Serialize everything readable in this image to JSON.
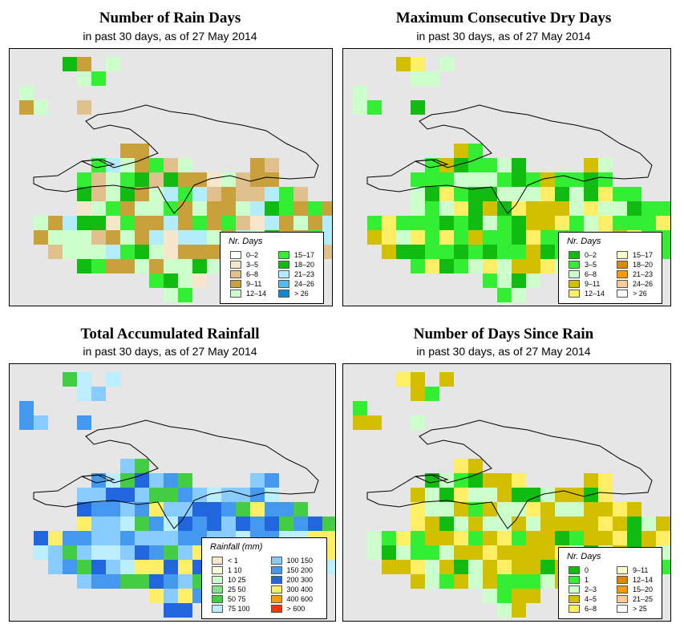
{
  "panels": [
    {
      "title": "Number of Rain Days",
      "subtitle": "in past 30 days, as of  27 May 2014",
      "legend_title": "Nr. Days",
      "legend": [
        {
          "label": "0–2",
          "color": "#ffffff"
        },
        {
          "label": "3–5",
          "color": "#f5e6cc"
        },
        {
          "label": "6–8",
          "color": "#e0c08c"
        },
        {
          "label": "9–11",
          "color": "#c8a03c"
        },
        {
          "label": "12–14",
          "color": "#ccffcc"
        },
        {
          "label": "15–17",
          "color": "#33ee33"
        },
        {
          "label": "18–20",
          "color": "#11bb11"
        },
        {
          "label": "21–23",
          "color": "#b3ecfa"
        },
        {
          "label": "24–26",
          "color": "#55bbee"
        },
        {
          "label": "> 26",
          "color": "#1188cc"
        }
      ]
    },
    {
      "title": "Maximum Consecutive Dry Days",
      "subtitle": "in past 30 days, as of  27 May 2014",
      "legend_title": "Nr. Days",
      "legend": [
        {
          "label": "0–2",
          "color": "#11bb11"
        },
        {
          "label": "3–5",
          "color": "#33ee33"
        },
        {
          "label": "6–8",
          "color": "#ccffcc"
        },
        {
          "label": "9–11",
          "color": "#d2c000"
        },
        {
          "label": "12–14",
          "color": "#ffee66"
        },
        {
          "label": "15–17",
          "color": "#ffffcc"
        },
        {
          "label": "18–20",
          "color": "#dd8800"
        },
        {
          "label": "21–23",
          "color": "#ff9900"
        },
        {
          "label": "24–26",
          "color": "#ffcc99"
        },
        {
          "label": "> 26",
          "color": "#ffffff"
        }
      ]
    },
    {
      "title": "Total Accumulated Rainfall",
      "subtitle": "in past 30 days, as of  27 May 2014",
      "legend_title": "Rainfall (mm)",
      "legend": [
        {
          "label": "< 1",
          "color": "#f5e6cc"
        },
        {
          "label": "1    10",
          "color": "#ffffe0"
        },
        {
          "label": "10    25",
          "color": "#ccffcc"
        },
        {
          "label": "25    50",
          "color": "#88e088"
        },
        {
          "label": "50    75",
          "color": "#44cc44"
        },
        {
          "label": "75    100",
          "color": "#bbeeff"
        },
        {
          "label": "100    150",
          "color": "#88ccff"
        },
        {
          "label": "150    200",
          "color": "#4499ee"
        },
        {
          "label": "200    300",
          "color": "#2266dd"
        },
        {
          "label": "300    400",
          "color": "#ffee66"
        },
        {
          "label": "400    600",
          "color": "#ff9900"
        },
        {
          "label": "> 600",
          "color": "#ff3300"
        }
      ]
    },
    {
      "title": "Number of Days Since Rain",
      "subtitle": "in past 30 days, as of  27 May 2014",
      "legend_title": "Nr. Days",
      "legend": [
        {
          "label": "0",
          "color": "#11bb11"
        },
        {
          "label": "1",
          "color": "#33ee33"
        },
        {
          "label": "2–3",
          "color": "#ccffcc"
        },
        {
          "label": "4–5",
          "color": "#d2c000"
        },
        {
          "label": "6–8",
          "color": "#ffee66"
        },
        {
          "label": "9–11",
          "color": "#ffffcc"
        },
        {
          "label": "12–14",
          "color": "#dd8800"
        },
        {
          "label": "15–20",
          "color": "#ff9900"
        },
        {
          "label": "21–25",
          "color": "#ffcc99"
        },
        {
          "label": "> 25",
          "color": "#ffffff"
        }
      ]
    }
  ]
}
